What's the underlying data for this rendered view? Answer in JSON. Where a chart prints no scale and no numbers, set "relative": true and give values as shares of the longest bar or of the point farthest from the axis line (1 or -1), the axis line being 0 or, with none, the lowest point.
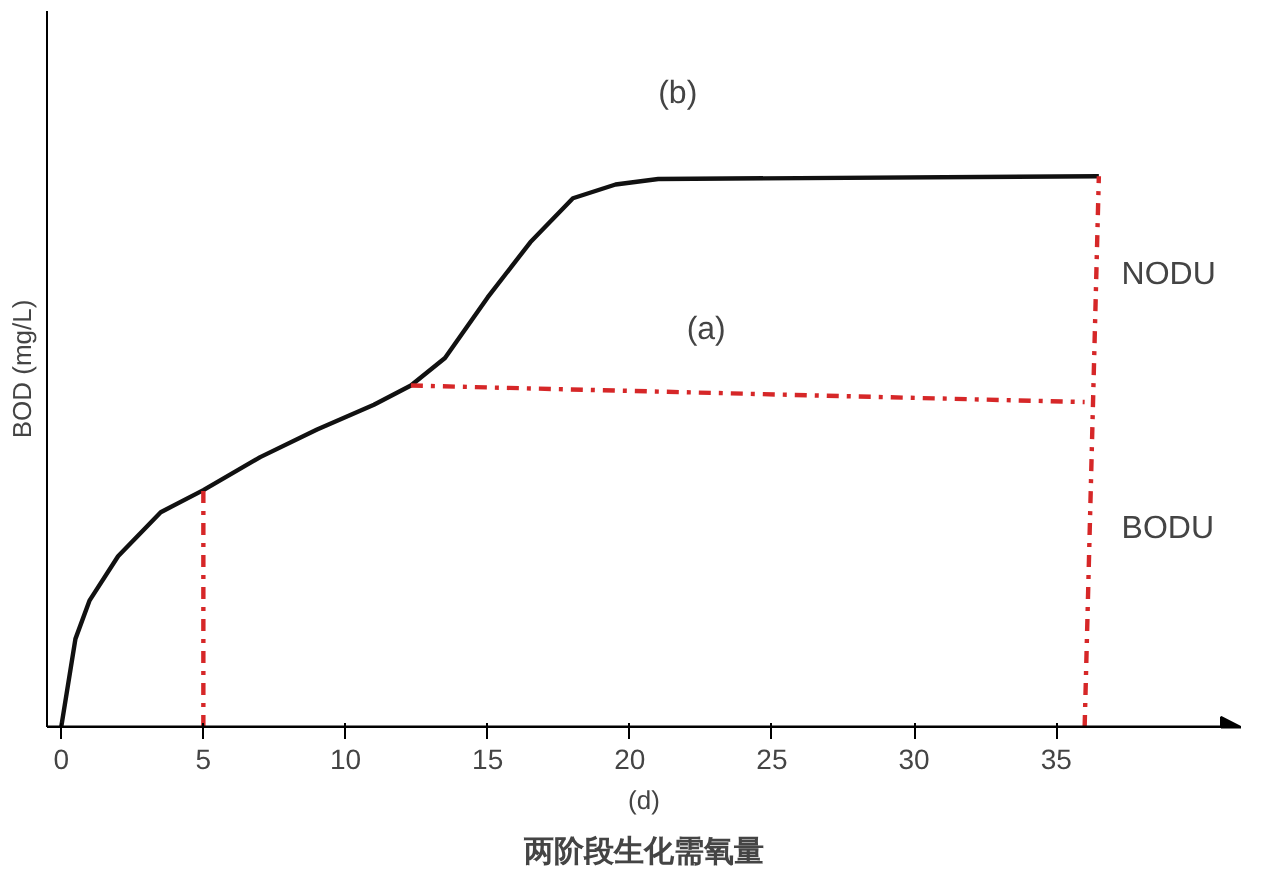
{
  "chart_data": {
    "type": "line",
    "relative": true,
    "title": "两阶段生化需氧量",
    "xlabel": "(d)",
    "ylabel": "BOD (mg/L)",
    "xlim": [
      -0.5,
      41.5
    ],
    "xticks": [
      0,
      5,
      10,
      15,
      20,
      25,
      30,
      35
    ],
    "grid": false,
    "marker": "none",
    "series": [
      {
        "color": "#111111",
        "line_style": "solid",
        "x": [
          0,
          0.5,
          1,
          2,
          3.5,
          5,
          7,
          9,
          11,
          12.3,
          13.5,
          15,
          16.5,
          18,
          19.5,
          21,
          36.5
        ],
        "values": [
          0,
          0.16,
          0.23,
          0.31,
          0.39,
          0.43,
          0.49,
          0.54,
          0.585,
          0.62,
          0.67,
          0.78,
          0.88,
          0.96,
          0.985,
          0.995,
          1
        ]
      },
      {
        "color": "#d62728",
        "line_style": "dashed",
        "x": [
          5,
          5
        ],
        "values": [
          0,
          0.43
        ]
      },
      {
        "color": "#d62728",
        "line_style": "dashed",
        "x": [
          12.3,
          36
        ],
        "values": [
          0.62,
          0.59
        ]
      },
      {
        "color": "#d62728",
        "line_style": "dashed",
        "x": [
          36,
          36.5
        ],
        "values": [
          0,
          1
        ]
      }
    ],
    "annotations": [
      "(a)",
      "(b)",
      "NODU",
      "BODU"
    ]
  }
}
